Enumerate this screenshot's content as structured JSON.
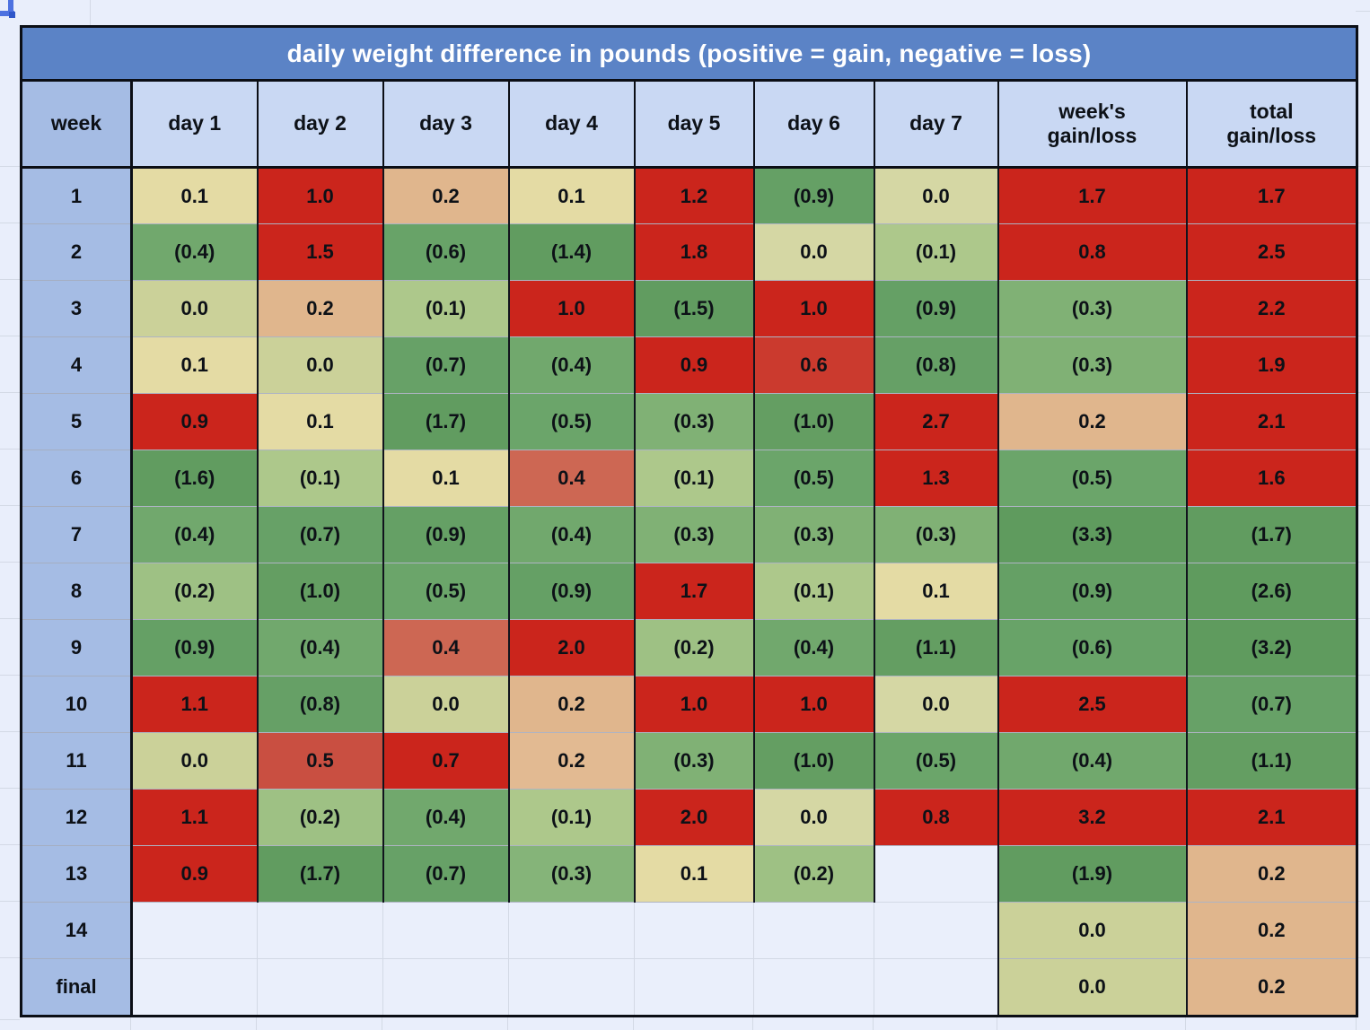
{
  "title": "daily weight difference in pounds (positive = gain, negative = loss)",
  "columns": [
    {
      "label": "week"
    },
    {
      "label": "day 1"
    },
    {
      "label": "day 2"
    },
    {
      "label": "day 3"
    },
    {
      "label": "day 4"
    },
    {
      "label": "day 5"
    },
    {
      "label": "day 6"
    },
    {
      "label": "day 7"
    },
    {
      "label": "week's",
      "label2": "gain/loss"
    },
    {
      "label": "total",
      "label2": "gain/loss"
    }
  ],
  "colors": {
    "title_bg": "#5b83c6",
    "header_bg": "#c9d8f3",
    "week_col_bg": "#a5bce4",
    "sheet_bg": "#e9eefb",
    "gridline": "#d3d9e5",
    "table_border": "#0b0e15",
    "selection_accent": "#4d71e0",
    "gain_strong": "#cb251c",
    "loss_strong": "#5f9b5e",
    "neutral": "#cbd199"
  },
  "rows": [
    {
      "week": "1",
      "days": [
        {
          "v": "0.1",
          "bg": "#e4dba4"
        },
        {
          "v": "1.0",
          "bg": "#cb251c"
        },
        {
          "v": "0.2",
          "bg": "#e0b68d"
        },
        {
          "v": "0.1",
          "bg": "#e4dba4"
        },
        {
          "v": "1.2",
          "bg": "#cb251c"
        },
        {
          "v": "(0.9)",
          "bg": "#65a065"
        },
        {
          "v": "0.0",
          "bg": "#d5d7a4"
        }
      ],
      "wg": {
        "v": "1.7",
        "bg": "#cb251c"
      },
      "tg": {
        "v": "1.7",
        "bg": "#cb251c"
      }
    },
    {
      "week": "2",
      "days": [
        {
          "v": "(0.4)",
          "bg": "#71a86d"
        },
        {
          "v": "1.5",
          "bg": "#cb251c"
        },
        {
          "v": "(0.6)",
          "bg": "#68a368"
        },
        {
          "v": "(1.4)",
          "bg": "#619c60"
        },
        {
          "v": "1.8",
          "bg": "#cb251c"
        },
        {
          "v": "0.0",
          "bg": "#d5d7a4"
        },
        {
          "v": "(0.1)",
          "bg": "#adc88b"
        }
      ],
      "wg": {
        "v": "0.8",
        "bg": "#cb251c"
      },
      "tg": {
        "v": "2.5",
        "bg": "#cb251c"
      }
    },
    {
      "week": "3",
      "days": [
        {
          "v": "0.0",
          "bg": "#cbd199"
        },
        {
          "v": "0.2",
          "bg": "#e0b68d"
        },
        {
          "v": "(0.1)",
          "bg": "#adc88b"
        },
        {
          "v": "1.0",
          "bg": "#cb251c"
        },
        {
          "v": "(1.5)",
          "bg": "#619c60"
        },
        {
          "v": "1.0",
          "bg": "#cb251c"
        },
        {
          "v": "(0.9)",
          "bg": "#65a065"
        }
      ],
      "wg": {
        "v": "(0.3)",
        "bg": "#80b175"
      },
      "tg": {
        "v": "2.2",
        "bg": "#cb251c"
      }
    },
    {
      "week": "4",
      "days": [
        {
          "v": "0.1",
          "bg": "#e4dba4"
        },
        {
          "v": "0.0",
          "bg": "#cbd199"
        },
        {
          "v": "(0.7)",
          "bg": "#67a167"
        },
        {
          "v": "(0.4)",
          "bg": "#71a86d"
        },
        {
          "v": "0.9",
          "bg": "#cb251c"
        },
        {
          "v": "0.6",
          "bg": "#cb3a2e"
        },
        {
          "v": "(0.8)",
          "bg": "#66a066"
        }
      ],
      "wg": {
        "v": "(0.3)",
        "bg": "#80b175"
      },
      "tg": {
        "v": "1.9",
        "bg": "#cb251c"
      }
    },
    {
      "week": "5",
      "days": [
        {
          "v": "0.9",
          "bg": "#cb251c"
        },
        {
          "v": "0.1",
          "bg": "#e4dba4"
        },
        {
          "v": "(1.7)",
          "bg": "#619c60"
        },
        {
          "v": "(0.5)",
          "bg": "#6ba56a"
        },
        {
          "v": "(0.3)",
          "bg": "#80b175"
        },
        {
          "v": "(1.0)",
          "bg": "#649e62"
        },
        {
          "v": "2.7",
          "bg": "#cb251c"
        }
      ],
      "wg": {
        "v": "0.2",
        "bg": "#e0b68d"
      },
      "tg": {
        "v": "2.1",
        "bg": "#cb251c"
      }
    },
    {
      "week": "6",
      "days": [
        {
          "v": "(1.6)",
          "bg": "#619c60"
        },
        {
          "v": "(0.1)",
          "bg": "#adc88b"
        },
        {
          "v": "0.1",
          "bg": "#e4dba4"
        },
        {
          "v": "0.4",
          "bg": "#cd6753"
        },
        {
          "v": "(0.1)",
          "bg": "#adc88b"
        },
        {
          "v": "(0.5)",
          "bg": "#6ba56a"
        },
        {
          "v": "1.3",
          "bg": "#cb251c"
        }
      ],
      "wg": {
        "v": "(0.5)",
        "bg": "#6ba56a"
      },
      "tg": {
        "v": "1.6",
        "bg": "#cb251c"
      }
    },
    {
      "week": "7",
      "days": [
        {
          "v": "(0.4)",
          "bg": "#71a86d"
        },
        {
          "v": "(0.7)",
          "bg": "#67a167"
        },
        {
          "v": "(0.9)",
          "bg": "#65a065"
        },
        {
          "v": "(0.4)",
          "bg": "#71a86d"
        },
        {
          "v": "(0.3)",
          "bg": "#80b175"
        },
        {
          "v": "(0.3)",
          "bg": "#80b175"
        },
        {
          "v": "(0.3)",
          "bg": "#80b175"
        }
      ],
      "wg": {
        "v": "(3.3)",
        "bg": "#5f9b5e"
      },
      "tg": {
        "v": "(1.7)",
        "bg": "#619c60"
      }
    },
    {
      "week": "8",
      "days": [
        {
          "v": "(0.2)",
          "bg": "#9ec184"
        },
        {
          "v": "(1.0)",
          "bg": "#649e62"
        },
        {
          "v": "(0.5)",
          "bg": "#6ba56a"
        },
        {
          "v": "(0.9)",
          "bg": "#65a065"
        },
        {
          "v": "1.7",
          "bg": "#cb251c"
        },
        {
          "v": "(0.1)",
          "bg": "#adc88b"
        },
        {
          "v": "0.1",
          "bg": "#e4dba4"
        }
      ],
      "wg": {
        "v": "(0.9)",
        "bg": "#65a065"
      },
      "tg": {
        "v": "(2.6)",
        "bg": "#5f9b5e"
      }
    },
    {
      "week": "9",
      "days": [
        {
          "v": "(0.9)",
          "bg": "#65a065"
        },
        {
          "v": "(0.4)",
          "bg": "#71a86d"
        },
        {
          "v": "0.4",
          "bg": "#cd6753"
        },
        {
          "v": "2.0",
          "bg": "#cb251c"
        },
        {
          "v": "(0.2)",
          "bg": "#9ec184"
        },
        {
          "v": "(0.4)",
          "bg": "#71a86d"
        },
        {
          "v": "(1.1)",
          "bg": "#649e62"
        }
      ],
      "wg": {
        "v": "(0.6)",
        "bg": "#68a368"
      },
      "tg": {
        "v": "(3.2)",
        "bg": "#5f9b5e"
      }
    },
    {
      "week": "10",
      "days": [
        {
          "v": "1.1",
          "bg": "#cb251c"
        },
        {
          "v": "(0.8)",
          "bg": "#66a066"
        },
        {
          "v": "0.0",
          "bg": "#cbd199"
        },
        {
          "v": "0.2",
          "bg": "#e0b68d"
        },
        {
          "v": "1.0",
          "bg": "#cb251c"
        },
        {
          "v": "1.0",
          "bg": "#cb251c"
        },
        {
          "v": "0.0",
          "bg": "#d5d7a4"
        }
      ],
      "wg": {
        "v": "2.5",
        "bg": "#cb251c"
      },
      "tg": {
        "v": "(0.7)",
        "bg": "#67a167"
      }
    },
    {
      "week": "11",
      "days": [
        {
          "v": "0.0",
          "bg": "#cbd199"
        },
        {
          "v": "0.5",
          "bg": "#c94f41"
        },
        {
          "v": "0.7",
          "bg": "#cb251c"
        },
        {
          "v": "0.2",
          "bg": "#e2ba92"
        },
        {
          "v": "(0.3)",
          "bg": "#80b175"
        },
        {
          "v": "(1.0)",
          "bg": "#649e62"
        },
        {
          "v": "(0.5)",
          "bg": "#6ba56a"
        }
      ],
      "wg": {
        "v": "(0.4)",
        "bg": "#71a86d"
      },
      "tg": {
        "v": "(1.1)",
        "bg": "#649e62"
      }
    },
    {
      "week": "12",
      "days": [
        {
          "v": "1.1",
          "bg": "#cb251c"
        },
        {
          "v": "(0.2)",
          "bg": "#9ec184"
        },
        {
          "v": "(0.4)",
          "bg": "#71a86d"
        },
        {
          "v": "(0.1)",
          "bg": "#adc88b"
        },
        {
          "v": "2.0",
          "bg": "#cb251c"
        },
        {
          "v": "0.0",
          "bg": "#d5d7a4"
        },
        {
          "v": "0.8",
          "bg": "#cb251c"
        }
      ],
      "wg": {
        "v": "3.2",
        "bg": "#cb251c"
      },
      "tg": {
        "v": "2.1",
        "bg": "#cb251c"
      }
    },
    {
      "week": "13",
      "days": [
        {
          "v": "0.9",
          "bg": "#cb251c"
        },
        {
          "v": "(1.7)",
          "bg": "#619c60"
        },
        {
          "v": "(0.7)",
          "bg": "#67a167"
        },
        {
          "v": "(0.3)",
          "bg": "#85b479"
        },
        {
          "v": "0.1",
          "bg": "#e4dba4"
        },
        {
          "v": "(0.2)",
          "bg": "#9ec184"
        },
        {
          "v": "",
          "bg": null
        }
      ],
      "wg": {
        "v": "(1.9)",
        "bg": "#619c60"
      },
      "tg": {
        "v": "0.2",
        "bg": "#e0b68d"
      }
    },
    {
      "week": "14",
      "days": [
        {
          "v": "",
          "bg": null
        },
        {
          "v": "",
          "bg": null
        },
        {
          "v": "",
          "bg": null
        },
        {
          "v": "",
          "bg": null
        },
        {
          "v": "",
          "bg": null
        },
        {
          "v": "",
          "bg": null
        },
        {
          "v": "",
          "bg": null
        }
      ],
      "wg": {
        "v": "0.0",
        "bg": "#cbd199"
      },
      "tg": {
        "v": "0.2",
        "bg": "#e0b68d"
      }
    },
    {
      "week": "final",
      "days": [
        {
          "v": "",
          "bg": null
        },
        {
          "v": "",
          "bg": null
        },
        {
          "v": "",
          "bg": null
        },
        {
          "v": "",
          "bg": null
        },
        {
          "v": "",
          "bg": null
        },
        {
          "v": "",
          "bg": null
        },
        {
          "v": "",
          "bg": null
        }
      ],
      "wg": {
        "v": "0.0",
        "bg": "#cbd199"
      },
      "tg": {
        "v": "0.2",
        "bg": "#e0b68d"
      }
    }
  ]
}
